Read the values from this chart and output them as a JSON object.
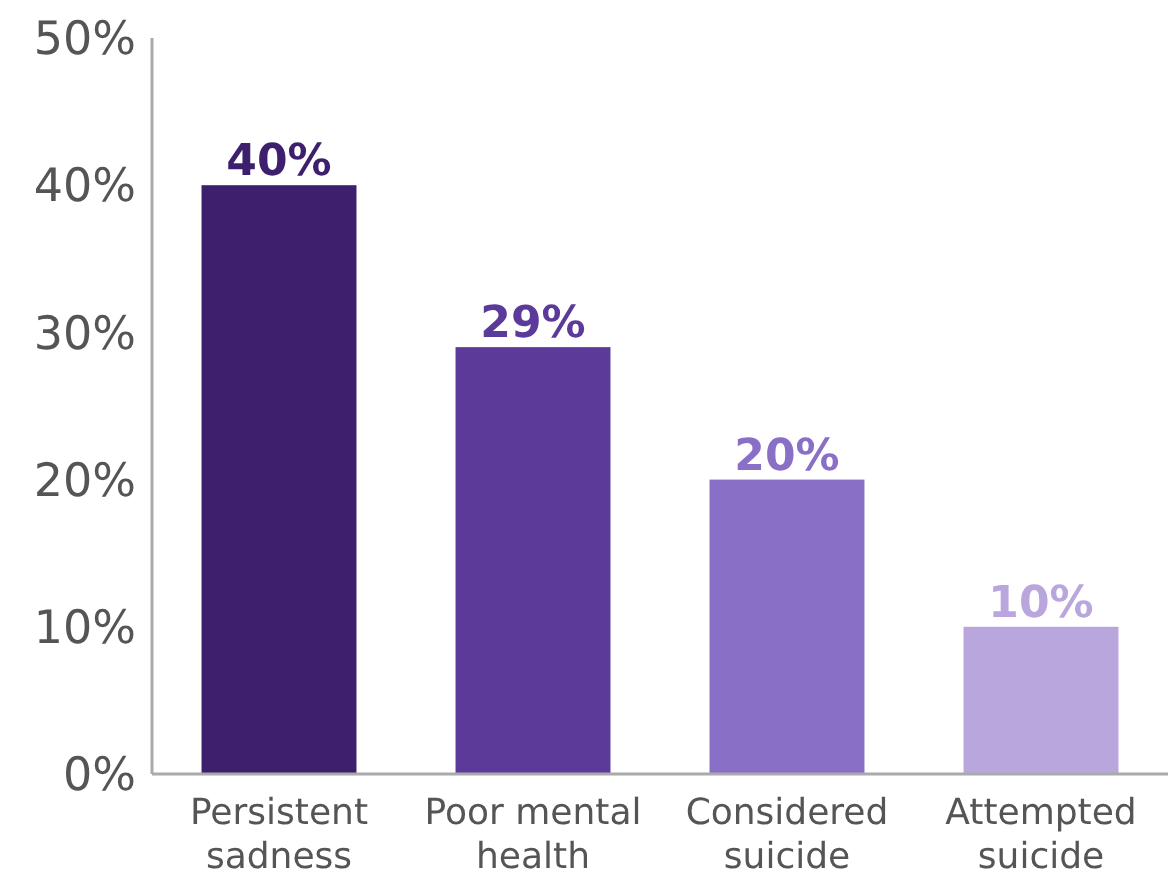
{
  "chart_data": {
    "type": "bar",
    "categories": [
      "Persistent sadness",
      "Poor mental health",
      "Considered suicide",
      "Attempted suicide"
    ],
    "values": [
      40,
      29,
      20,
      10
    ],
    "colors": [
      "#3d1f6e",
      "#5c3a9a",
      "#8a6fc6",
      "#b8a6dc"
    ],
    "ylim": [
      0,
      50
    ],
    "yticks": [
      {
        "value": 0,
        "label": "0%"
      },
      {
        "value": 10,
        "label": "10%"
      },
      {
        "value": 20,
        "label": "20%"
      },
      {
        "value": 30,
        "label": "30%"
      },
      {
        "value": 40,
        "label": "40%"
      },
      {
        "value": 50,
        "label": "50%"
      }
    ],
    "value_labels": [
      "40%",
      "29%",
      "20%",
      "10%"
    ],
    "grid": false
  }
}
